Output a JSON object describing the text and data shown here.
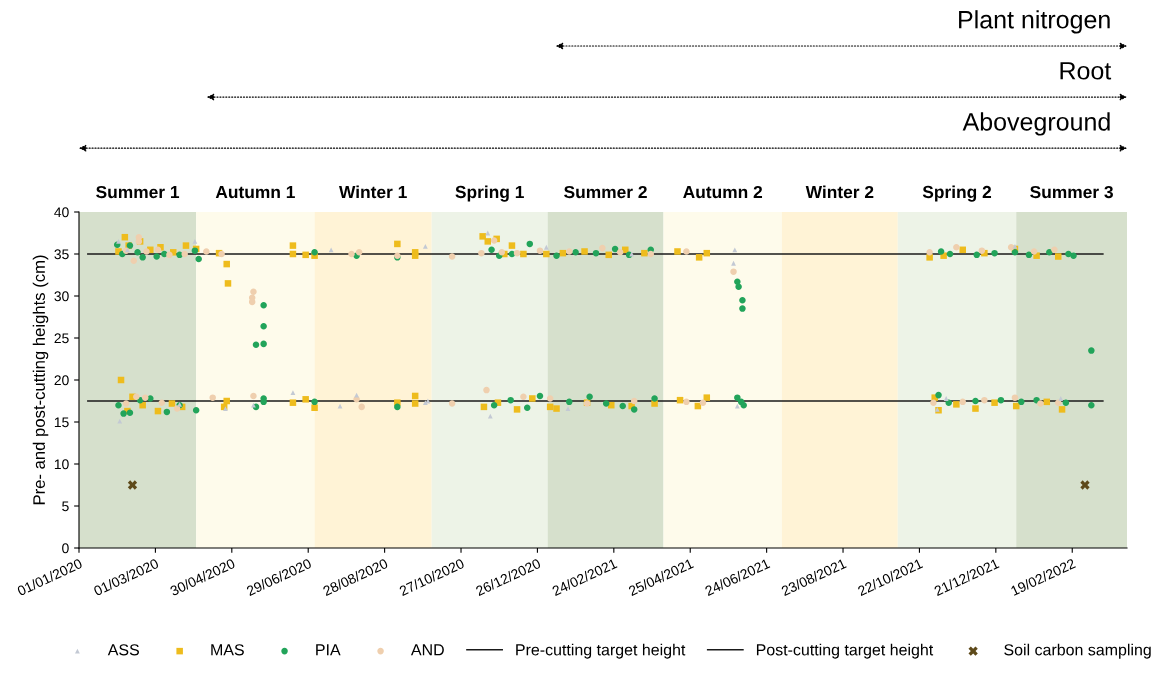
{
  "chart_data": {
    "type": "scatter",
    "ylabel": "Pre- and post-cutting heights (cm)",
    "xlim": [
      "2020-01-01",
      "2022-04-03"
    ],
    "xticks": [
      {
        "value": "2020-01-01",
        "label": "01/01/2020"
      },
      {
        "value": "2020-03-01",
        "label": "01/03/2020"
      },
      {
        "value": "2020-04-30",
        "label": "30/04/2020"
      },
      {
        "value": "2020-06-29",
        "label": "29/06/2020"
      },
      {
        "value": "2020-08-28",
        "label": "28/08/2020"
      },
      {
        "value": "2020-10-27",
        "label": "27/10/2020"
      },
      {
        "value": "2020-12-26",
        "label": "26/12/2020"
      },
      {
        "value": "2021-02-24",
        "label": "24/02/2021"
      },
      {
        "value": "2021-04-25",
        "label": "25/04/2021"
      },
      {
        "value": "2021-06-24",
        "label": "24/06/2021"
      },
      {
        "value": "2021-08-23",
        "label": "23/08/2021"
      },
      {
        "value": "2021-10-22",
        "label": "22/10/2021"
      },
      {
        "value": "2021-12-21",
        "label": "21/12/2021"
      },
      {
        "value": "2022-02-19",
        "label": "19/02/2022"
      }
    ],
    "ylim": [
      0,
      40
    ],
    "yticks": [
      0,
      5,
      10,
      15,
      20,
      25,
      30,
      35,
      40
    ],
    "legend": "bottom",
    "bands": [
      {
        "axis": "x",
        "from": "2020-01-01",
        "to": "2020-04-02",
        "label": "Summer 1",
        "color": "#d6e0cc"
      },
      {
        "axis": "x",
        "from": "2020-04-02",
        "to": "2020-07-04",
        "label": "Autumn 1",
        "color": "#fefbeb"
      },
      {
        "axis": "x",
        "from": "2020-07-04",
        "to": "2020-10-04",
        "label": "Winter 1",
        "color": "#fff3d6"
      },
      {
        "axis": "x",
        "from": "2020-10-04",
        "to": "2021-01-03",
        "label": "Spring 1",
        "color": "#edf3e7"
      },
      {
        "axis": "x",
        "from": "2021-01-03",
        "to": "2021-04-04",
        "label": "Summer 2",
        "color": "#d6e0cc"
      },
      {
        "axis": "x",
        "from": "2021-04-04",
        "to": "2021-07-06",
        "label": "Autumn 2",
        "color": "#fefbeb"
      },
      {
        "axis": "x",
        "from": "2021-07-06",
        "to": "2021-10-05",
        "label": "Winter 2",
        "color": "#fff3d6"
      },
      {
        "axis": "x",
        "from": "2021-10-05",
        "to": "2022-01-06",
        "label": "Spring 2",
        "color": "#edf3e7"
      },
      {
        "axis": "x",
        "from": "2022-01-06",
        "to": "2022-04-03",
        "label": "Summer 3",
        "color": "#d6e0cc"
      }
    ],
    "annotations": [
      "Plant nitrogen",
      "Root",
      "Aboveground"
    ],
    "series": [
      {
        "name": "ASS",
        "marker": "triangle",
        "color": "#c3c9d4",
        "x": [
          "2020-02-01",
          "2020-02-02",
          "2020-02-08",
          "2020-03-20",
          "2020-04-01",
          "2020-04-25",
          "2020-05-17",
          "2020-06-17",
          "2020-07-17",
          "2020-07-24",
          "2020-08-06",
          "2020-09-29",
          "2020-09-29",
          "2020-10-01",
          "2020-11-17",
          "2020-11-19",
          "2021-01-02",
          "2021-01-19",
          "2021-03-10",
          "2021-05-29",
          "2021-05-30",
          "2021-06-01",
          "2021-11-05",
          "2021-11-12",
          "2022-01-05",
          "2022-02-10"
        ],
        "values": [
          36.5,
          15.1,
          35.5,
          17.1,
          36.5,
          16.6,
          17.0,
          18.5,
          35.5,
          16.9,
          18.2,
          35.9,
          17.3,
          17.5,
          37.5,
          15.7,
          35.8,
          16.6,
          35.0,
          33.9,
          35.5,
          16.9,
          16.5,
          17.8,
          35.9,
          17.8
        ]
      },
      {
        "name": "MAS",
        "marker": "square",
        "color": "#eebc1d",
        "x": [
          "2020-02-01",
          "2020-02-06",
          "2020-02-09",
          "2020-02-18",
          "2020-02-26",
          "2020-03-05",
          "2020-03-15",
          "2020-03-25",
          "2020-04-02",
          "2020-02-03",
          "2020-02-08",
          "2020-02-12",
          "2020-02-20",
          "2020-03-03",
          "2020-03-14",
          "2020-03-22",
          "2020-04-20",
          "2020-04-26",
          "2020-04-27",
          "2020-04-24",
          "2020-04-26",
          "2020-06-17",
          "2020-06-17",
          "2020-06-27",
          "2020-07-04",
          "2020-06-17",
          "2020-06-27",
          "2020-07-04",
          "2020-09-07",
          "2020-09-07",
          "2020-09-21",
          "2020-09-21",
          "2020-09-21",
          "2020-09-21",
          "2020-11-13",
          "2020-11-17",
          "2020-11-24",
          "2020-11-30",
          "2020-12-06",
          "2020-12-15",
          "2021-01-02",
          "2021-01-15",
          "2021-02-01",
          "2021-02-20",
          "2021-03-05",
          "2021-03-20",
          "2020-11-14",
          "2020-11-25",
          "2020-12-10",
          "2020-12-22",
          "2021-01-05",
          "2021-01-10",
          "2021-02-03",
          "2021-02-22",
          "2021-03-10",
          "2021-03-28",
          "2021-04-15",
          "2021-05-02",
          "2021-05-08",
          "2021-04-17",
          "2021-05-01",
          "2021-05-08",
          "2021-10-30",
          "2021-11-10",
          "2021-11-25",
          "2021-12-12",
          "2022-01-05",
          "2022-01-22",
          "2022-02-08",
          "2021-11-03",
          "2021-11-06",
          "2021-11-20",
          "2021-12-05",
          "2021-12-20",
          "2022-01-06",
          "2022-01-30",
          "2022-02-11"
        ],
        "values": [
          35.3,
          37.0,
          36.0,
          36.5,
          35.5,
          35.8,
          35.2,
          36.0,
          35.6,
          20.0,
          16.3,
          18.0,
          17.0,
          16.3,
          17.2,
          16.8,
          35.1,
          33.8,
          31.5,
          16.8,
          17.5,
          36.0,
          35.0,
          34.9,
          34.8,
          17.3,
          17.7,
          16.7,
          36.2,
          17.3,
          35.2,
          34.8,
          18.1,
          17.2,
          37.1,
          36.5,
          36.8,
          35.0,
          36.0,
          35.0,
          35.0,
          35.1,
          35.3,
          34.9,
          35.5,
          35.1,
          16.8,
          17.3,
          16.5,
          17.8,
          16.8,
          16.6,
          17.3,
          17.0,
          16.9,
          17.2,
          35.3,
          34.6,
          35.1,
          17.6,
          16.9,
          17.9,
          34.6,
          34.8,
          35.5,
          35.1,
          35.6,
          34.8,
          34.7,
          17.9,
          16.4,
          17.1,
          16.6,
          17.3,
          16.9,
          17.4,
          16.5
        ]
      },
      {
        "name": "PIA",
        "marker": "circle",
        "color": "#22a45a",
        "x": [
          "2020-01-31",
          "2020-02-04",
          "2020-02-10",
          "2020-02-16",
          "2020-02-20",
          "2020-03-02",
          "2020-03-08",
          "2020-03-20",
          "2020-04-01",
          "2020-04-04",
          "2020-02-01",
          "2020-02-05",
          "2020-02-10",
          "2020-02-18",
          "2020-02-26",
          "2020-03-10",
          "2020-03-20",
          "2020-04-02",
          "2020-05-19",
          "2020-05-25",
          "2020-05-25",
          "2020-05-25",
          "2020-05-19",
          "2020-05-25",
          "2020-05-25",
          "2020-07-04",
          "2020-08-06",
          "2020-07-04",
          "2020-09-07",
          "2020-09-07",
          "2020-11-20",
          "2020-11-26",
          "2020-12-06",
          "2020-12-20",
          "2021-01-10",
          "2021-01-25",
          "2021-02-10",
          "2021-02-25",
          "2021-03-08",
          "2021-03-25",
          "2020-11-22",
          "2020-12-05",
          "2020-12-18",
          "2020-12-28",
          "2021-01-20",
          "2021-02-05",
          "2021-02-18",
          "2021-03-03",
          "2021-03-12",
          "2021-03-28",
          "2021-06-01",
          "2021-06-02",
          "2021-06-05",
          "2021-06-05",
          "2021-06-01",
          "2021-06-04",
          "2021-06-06",
          "2021-11-08",
          "2021-11-15",
          "2021-12-06",
          "2021-12-20",
          "2022-01-05",
          "2022-01-16",
          "2022-02-01",
          "2022-02-16",
          "2022-02-20",
          "2021-11-06",
          "2021-11-14",
          "2021-12-05",
          "2021-12-25",
          "2022-01-10",
          "2022-01-22",
          "2022-02-14",
          "2022-03-06",
          "2022-03-06"
        ],
        "values": [
          36.1,
          35.0,
          36.0,
          35.2,
          34.6,
          34.7,
          35.0,
          34.9,
          35.4,
          34.4,
          17.0,
          16.0,
          16.1,
          17.6,
          17.8,
          16.2,
          17.0,
          16.4,
          24.2,
          24.3,
          26.4,
          28.9,
          16.8,
          17.8,
          17.4,
          35.2,
          34.8,
          17.4,
          34.6,
          16.8,
          35.5,
          34.8,
          35.0,
          36.2,
          34.8,
          35.2,
          35.1,
          35.6,
          34.9,
          35.5,
          17.0,
          17.6,
          16.7,
          18.1,
          17.4,
          18.0,
          17.2,
          16.9,
          16.5,
          17.8,
          31.7,
          31.1,
          29.5,
          28.5,
          17.9,
          17.4,
          17.0,
          35.3,
          35.0,
          34.9,
          35.1,
          35.2,
          34.9,
          35.2,
          35.0,
          34.8,
          18.2,
          17.3,
          17.5,
          17.6,
          17.4,
          17.6,
          17.3,
          17.0,
          23.5
        ]
      },
      {
        "name": "AND",
        "marker": "circle",
        "color": "#efcfae",
        "x": [
          "2020-02-07",
          "2020-02-13",
          "2020-02-17",
          "2020-02-17",
          "2020-02-23",
          "2020-03-03",
          "2020-03-12",
          "2020-03-24",
          "2020-04-10",
          "2020-04-22",
          "2020-02-07",
          "2020-02-15",
          "2020-02-22",
          "2020-03-06",
          "2020-03-18",
          "2020-04-15",
          "2020-05-17",
          "2020-05-16",
          "2020-05-16",
          "2020-05-17",
          "2020-08-02",
          "2020-08-08",
          "2020-08-10",
          "2020-08-06",
          "2020-09-07",
          "2020-10-20",
          "2020-10-20",
          "2020-11-12",
          "2020-11-16",
          "2020-11-22",
          "2020-11-28",
          "2020-12-10",
          "2020-12-15",
          "2020-12-28",
          "2021-01-05",
          "2021-01-20",
          "2021-02-03",
          "2021-02-15",
          "2021-03-01",
          "2021-03-12",
          "2021-03-25",
          "2021-04-22",
          "2021-04-22",
          "2021-05-05",
          "2021-05-29",
          "2021-10-30",
          "2021-11-02",
          "2021-11-20",
          "2021-11-25",
          "2021-12-10",
          "2021-12-12",
          "2022-01-02",
          "2022-01-05",
          "2022-01-20",
          "2022-01-25",
          "2022-02-05",
          "2022-02-08"
        ],
        "values": [
          35.4,
          34.2,
          37.0,
          36.5,
          35.3,
          35.5,
          34.9,
          35.0,
          35.3,
          35.0,
          17.2,
          18.0,
          17.9,
          17.3,
          16.6,
          17.9,
          30.5,
          29.8,
          29.3,
          18.1,
          35.0,
          35.2,
          16.8,
          17.7,
          34.8,
          34.7,
          17.2,
          35.1,
          18.8,
          36.6,
          35.2,
          35.1,
          18.0,
          35.4,
          17.8,
          35.3,
          17.2,
          35.7,
          35.2,
          17.5,
          35.0,
          35.3,
          17.4,
          17.3,
          32.9,
          35.2,
          17.3,
          35.8,
          17.4,
          35.4,
          17.6,
          35.8,
          17.9,
          35.3,
          17.2,
          35.5,
          17.3
        ]
      },
      {
        "name": "Pre-cutting target height",
        "type": "line",
        "marker": "none",
        "line_style": "solid",
        "color": "#1a1a1a",
        "x": [
          "2020-01-08",
          "2022-03-15"
        ],
        "values": [
          35,
          35
        ]
      },
      {
        "name": "Post-cutting target height",
        "type": "line",
        "marker": "none",
        "line_style": "solid",
        "color": "#1a1a1a",
        "x": [
          "2020-01-08",
          "2022-03-15"
        ],
        "values": [
          17.5,
          17.5
        ]
      },
      {
        "name": "Soil carbon sampling",
        "marker": "cross",
        "color": "#5e4a1a",
        "x": [
          "2020-02-12",
          "2022-03-01"
        ],
        "values": [
          7.5,
          7.5
        ]
      }
    ]
  }
}
